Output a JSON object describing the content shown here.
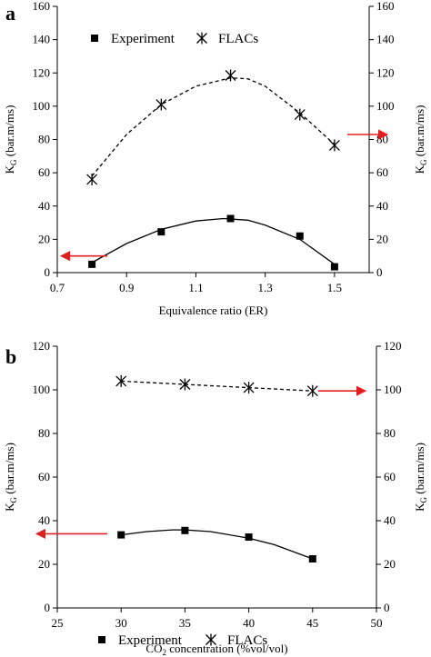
{
  "chart_data": [
    {
      "panel_label": "a",
      "type": "scatter",
      "xlabel": "Equivalence ratio (ER)",
      "ylabel_left": {
        "main": "K",
        "sub": "G",
        "rest": " (bar.m/ms)"
      },
      "ylabel_right": {
        "main": "K",
        "sub": "G",
        "rest": " (bar.m/ms)"
      },
      "xlim": [
        0.7,
        1.6
      ],
      "ylim": [
        0,
        160
      ],
      "xticks": [
        "0.7",
        "0.9",
        "1.1",
        "1.3",
        "1.5"
      ],
      "xtick_values": [
        0.7,
        0.9,
        1.1,
        1.3,
        1.5
      ],
      "yticks": [
        "0",
        "20",
        "40",
        "60",
        "80",
        "100",
        "120",
        "140",
        "160"
      ],
      "ytick_values": [
        0,
        20,
        40,
        60,
        80,
        100,
        120,
        140,
        160
      ],
      "legend": {
        "placement": "top",
        "entries": [
          "Experiment",
          "FLACs"
        ]
      },
      "series": [
        {
          "name": "Experiment",
          "marker": "square",
          "fit": "solid",
          "x": [
            0.8,
            1.0,
            1.2,
            1.4,
            1.5
          ],
          "y": [
            5,
            24.5,
            32.5,
            22,
            3.5
          ],
          "fit_curve": [
            [
              0.8,
              6
            ],
            [
              0.9,
              17.5
            ],
            [
              1.0,
              26
            ],
            [
              1.1,
              31
            ],
            [
              1.18,
              32.5
            ],
            [
              1.25,
              31.5
            ],
            [
              1.3,
              28.5
            ],
            [
              1.4,
              20
            ],
            [
              1.5,
              5
            ]
          ]
        },
        {
          "name": "FLACs",
          "marker": "star",
          "fit": "dashed",
          "x": [
            0.8,
            1.0,
            1.2,
            1.4,
            1.5
          ],
          "y": [
            56,
            101,
            118.5,
            95,
            76.5
          ],
          "fit_curve": [
            [
              0.8,
              58
            ],
            [
              0.9,
              83
            ],
            [
              1.0,
              101
            ],
            [
              1.1,
              112
            ],
            [
              1.2,
              117
            ],
            [
              1.25,
              116.5
            ],
            [
              1.3,
              112
            ],
            [
              1.4,
              96
            ],
            [
              1.5,
              77
            ]
          ]
        }
      ],
      "arrows": [
        {
          "color": "#e02020",
          "direction": "left",
          "points_to_axis": "left",
          "at_y": 10
        },
        {
          "color": "#e02020",
          "direction": "right",
          "points_to_axis": "right",
          "at_y": 83
        }
      ]
    },
    {
      "panel_label": "b",
      "type": "scatter",
      "xlabel": {
        "pre": "CO",
        "sub": "2",
        "rest": " concentration (%vol/vol)"
      },
      "ylabel_left": {
        "main": "K",
        "sub": "G",
        "rest": " (bar.m/ms)"
      },
      "ylabel_right": {
        "main": "K",
        "sub": "G",
        "rest": " (bar.m/ms)"
      },
      "xlim": [
        25,
        50
      ],
      "ylim": [
        0,
        120
      ],
      "xticks": [
        "25",
        "30",
        "35",
        "40",
        "45",
        "50"
      ],
      "xtick_values": [
        25,
        30,
        35,
        40,
        45,
        50
      ],
      "yticks": [
        "0",
        "20",
        "40",
        "60",
        "80",
        "100",
        "120"
      ],
      "ytick_values": [
        0,
        20,
        40,
        60,
        80,
        100,
        120
      ],
      "legend": {
        "placement": "bottom",
        "entries": [
          "Experiment",
          "FLACs"
        ]
      },
      "series": [
        {
          "name": "Experiment",
          "marker": "square",
          "fit": "solid",
          "x": [
            30,
            35,
            40,
            45
          ],
          "y": [
            33.5,
            35.5,
            32.5,
            22.5
          ],
          "fit_curve": [
            [
              30,
              33.5
            ],
            [
              32,
              35
            ],
            [
              34,
              35.8
            ],
            [
              35,
              35.8
            ],
            [
              37,
              35
            ],
            [
              40,
              32
            ],
            [
              42,
              29
            ],
            [
              45,
              22.5
            ]
          ]
        },
        {
          "name": "FLACs",
          "marker": "star",
          "fit": "dashed",
          "x": [
            30,
            35,
            40,
            45
          ],
          "y": [
            104,
            102.5,
            101,
            99.5
          ],
          "fit_curve": [
            [
              30,
              104
            ],
            [
              35,
              102.5
            ],
            [
              40,
              101
            ],
            [
              45,
              99.5
            ]
          ]
        }
      ],
      "arrows": [
        {
          "color": "#e02020",
          "direction": "left",
          "points_to_axis": "left",
          "at_y": 34
        },
        {
          "color": "#e02020",
          "direction": "right",
          "points_to_axis": "right",
          "at_y": 99.5
        }
      ]
    }
  ]
}
